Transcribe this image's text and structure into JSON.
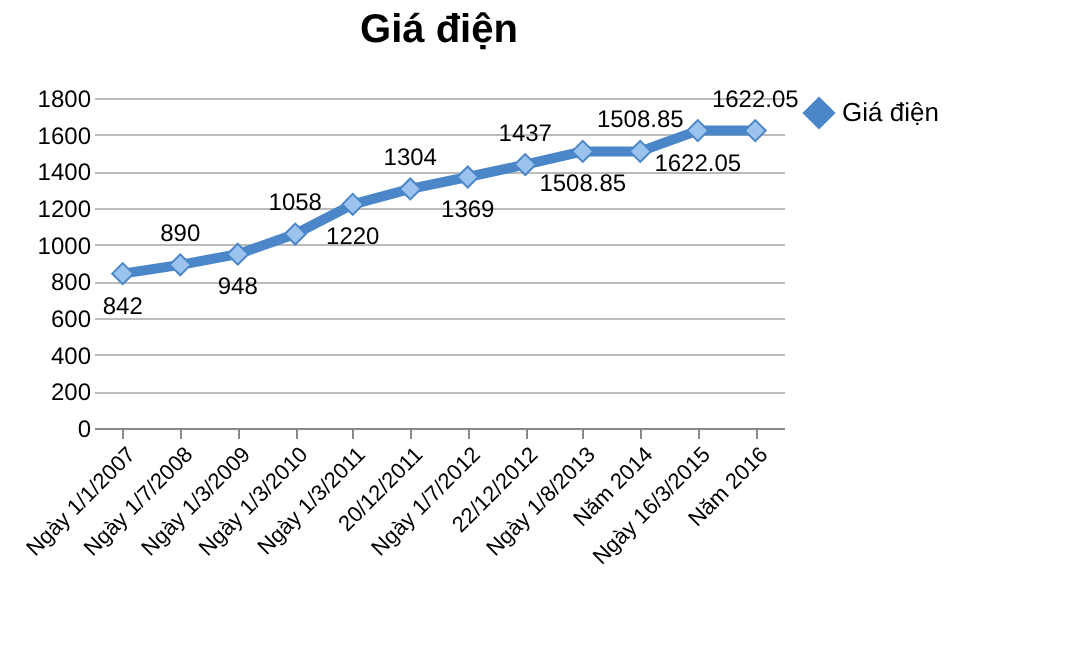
{
  "chart_data": {
    "type": "line",
    "title": "Giá điện",
    "categories": [
      "Ngày 1/1/2007",
      "Ngày 1/7/2008",
      "Ngày 1/3/2009",
      "Ngày 1/3/2010",
      "Ngày 1/3/2011",
      "20/12/2011",
      "Ngày 1/7/2012",
      "22/12/2012",
      "Ngày 1/8/2013",
      "Năm 2014",
      "Ngày 16/3/2015",
      "Năm 2016"
    ],
    "series": [
      {
        "name": "Giá điện",
        "color": "#4a86c8",
        "values": [
          842,
          890,
          948,
          1058,
          1220,
          1304,
          1369,
          1437,
          1508.85,
          1508.85,
          1622.05,
          1622.05
        ]
      }
    ],
    "ylim": [
      0,
      1800
    ],
    "yticks": [
      0,
      200,
      400,
      600,
      800,
      1000,
      1200,
      1400,
      1600,
      1800
    ],
    "grid": "y",
    "legend": "right",
    "marker": "diamond",
    "data_labels": true
  }
}
